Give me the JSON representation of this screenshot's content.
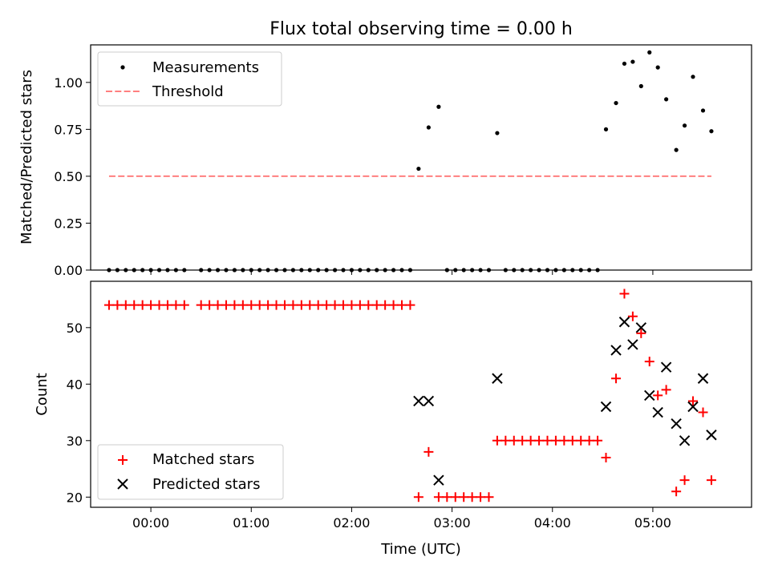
{
  "chart_data": [
    {
      "type": "scatter",
      "title": "Flux total observing time = 0.00 h",
      "xlabel": "",
      "ylabel": "Matched/Predicted stars",
      "xlim": [
        "23:24",
        "05:59"
      ],
      "ylim": [
        0,
        1.2
      ],
      "x_ticks": [
        "00:00",
        "01:00",
        "02:00",
        "03:00",
        "04:00",
        "05:00"
      ],
      "y_ticks": [
        "0.00",
        "0.25",
        "0.50",
        "0.75",
        "1.00"
      ],
      "legend_position": "upper left",
      "series": [
        {
          "name": "Measurements",
          "marker": "dot",
          "color": "#000000",
          "x": [
            "23:35",
            "23:40",
            "23:45",
            "23:50",
            "23:55",
            "00:00",
            "00:05",
            "00:10",
            "00:15",
            "00:20",
            "00:30",
            "00:35",
            "00:40",
            "00:45",
            "00:50",
            "00:55",
            "01:00",
            "01:05",
            "01:10",
            "01:15",
            "01:20",
            "01:25",
            "01:30",
            "01:35",
            "01:40",
            "01:45",
            "01:50",
            "01:55",
            "02:00",
            "02:05",
            "02:10",
            "02:15",
            "02:20",
            "02:25",
            "02:30",
            "02:35",
            "02:40",
            "02:46",
            "02:52",
            "02:57",
            "03:02",
            "03:07",
            "03:12",
            "03:17",
            "03:22",
            "03:27",
            "03:32",
            "03:37",
            "03:42",
            "03:47",
            "03:52",
            "03:57",
            "04:02",
            "04:07",
            "04:12",
            "04:17",
            "04:22",
            "04:27",
            "04:32",
            "04:38",
            "04:43",
            "04:48",
            "04:53",
            "04:58",
            "05:03",
            "05:08",
            "05:14",
            "05:19",
            "05:24",
            "05:30",
            "05:35"
          ],
          "y": [
            0,
            0,
            0,
            0,
            0,
            0,
            0,
            0,
            0,
            0,
            0,
            0,
            0,
            0,
            0,
            0,
            0,
            0,
            0,
            0,
            0,
            0,
            0,
            0,
            0,
            0,
            0,
            0,
            0,
            0,
            0,
            0,
            0,
            0,
            0,
            0,
            0.54,
            0.76,
            0.87,
            0,
            0,
            0,
            0,
            0,
            0,
            0.73,
            0,
            0,
            0,
            0,
            0,
            0,
            0,
            0,
            0,
            0,
            0,
            0,
            0.75,
            0.89,
            1.1,
            1.11,
            0.98,
            1.16,
            1.08,
            0.91,
            0.64,
            0.77,
            1.03,
            0.85,
            0.74
          ]
        },
        {
          "name": "Threshold",
          "marker": "dashed-line",
          "color": "#ff7f7f",
          "x": [
            "23:35",
            "05:35"
          ],
          "y": [
            0.5,
            0.5
          ]
        }
      ]
    },
    {
      "type": "scatter",
      "xlabel": "Time (UTC)",
      "ylabel": "Count",
      "xlim": [
        "23:24",
        "05:59"
      ],
      "ylim": [
        18.2,
        58.2
      ],
      "x_ticks": [
        "00:00",
        "01:00",
        "02:00",
        "03:00",
        "04:00",
        "05:00"
      ],
      "y_ticks": [
        "20",
        "30",
        "40",
        "50"
      ],
      "legend_position": "lower left",
      "series": [
        {
          "name": "Matched stars",
          "marker": "plus",
          "color": "#ff0000",
          "x": [
            "23:35",
            "23:40",
            "23:45",
            "23:50",
            "23:55",
            "00:00",
            "00:05",
            "00:10",
            "00:15",
            "00:20",
            "00:30",
            "00:35",
            "00:40",
            "00:45",
            "00:50",
            "00:55",
            "01:00",
            "01:05",
            "01:10",
            "01:15",
            "01:20",
            "01:25",
            "01:30",
            "01:35",
            "01:40",
            "01:45",
            "01:50",
            "01:55",
            "02:00",
            "02:05",
            "02:10",
            "02:15",
            "02:20",
            "02:25",
            "02:30",
            "02:35",
            "02:40",
            "02:46",
            "02:52",
            "02:57",
            "03:02",
            "03:07",
            "03:12",
            "03:17",
            "03:22",
            "03:27",
            "03:32",
            "03:37",
            "03:42",
            "03:47",
            "03:52",
            "03:57",
            "04:02",
            "04:07",
            "04:12",
            "04:17",
            "04:22",
            "04:27",
            "04:32",
            "04:38",
            "04:43",
            "04:48",
            "04:53",
            "04:58",
            "05:03",
            "05:08",
            "05:14",
            "05:19",
            "05:24",
            "05:30",
            "05:35"
          ],
          "y": [
            54,
            54,
            54,
            54,
            54,
            54,
            54,
            54,
            54,
            54,
            54,
            54,
            54,
            54,
            54,
            54,
            54,
            54,
            54,
            54,
            54,
            54,
            54,
            54,
            54,
            54,
            54,
            54,
            54,
            54,
            54,
            54,
            54,
            54,
            54,
            54,
            20,
            28,
            20,
            20,
            20,
            20,
            20,
            20,
            20,
            30,
            30,
            30,
            30,
            30,
            30,
            30,
            30,
            30,
            30,
            30,
            30,
            30,
            27,
            41,
            56,
            52,
            49,
            44,
            38,
            39,
            21,
            23,
            37,
            35,
            23
          ]
        },
        {
          "name": "Predicted stars",
          "marker": "x",
          "color": "#000000",
          "x": [
            "02:40",
            "02:46",
            "02:52",
            "03:27",
            "04:32",
            "04:38",
            "04:43",
            "04:48",
            "04:53",
            "04:58",
            "05:03",
            "05:08",
            "05:14",
            "05:19",
            "05:24",
            "05:30",
            "05:35"
          ],
          "y": [
            37,
            37,
            23,
            41,
            36,
            46,
            51,
            47,
            50,
            38,
            35,
            43,
            33,
            30,
            36,
            41,
            31
          ]
        }
      ]
    }
  ]
}
